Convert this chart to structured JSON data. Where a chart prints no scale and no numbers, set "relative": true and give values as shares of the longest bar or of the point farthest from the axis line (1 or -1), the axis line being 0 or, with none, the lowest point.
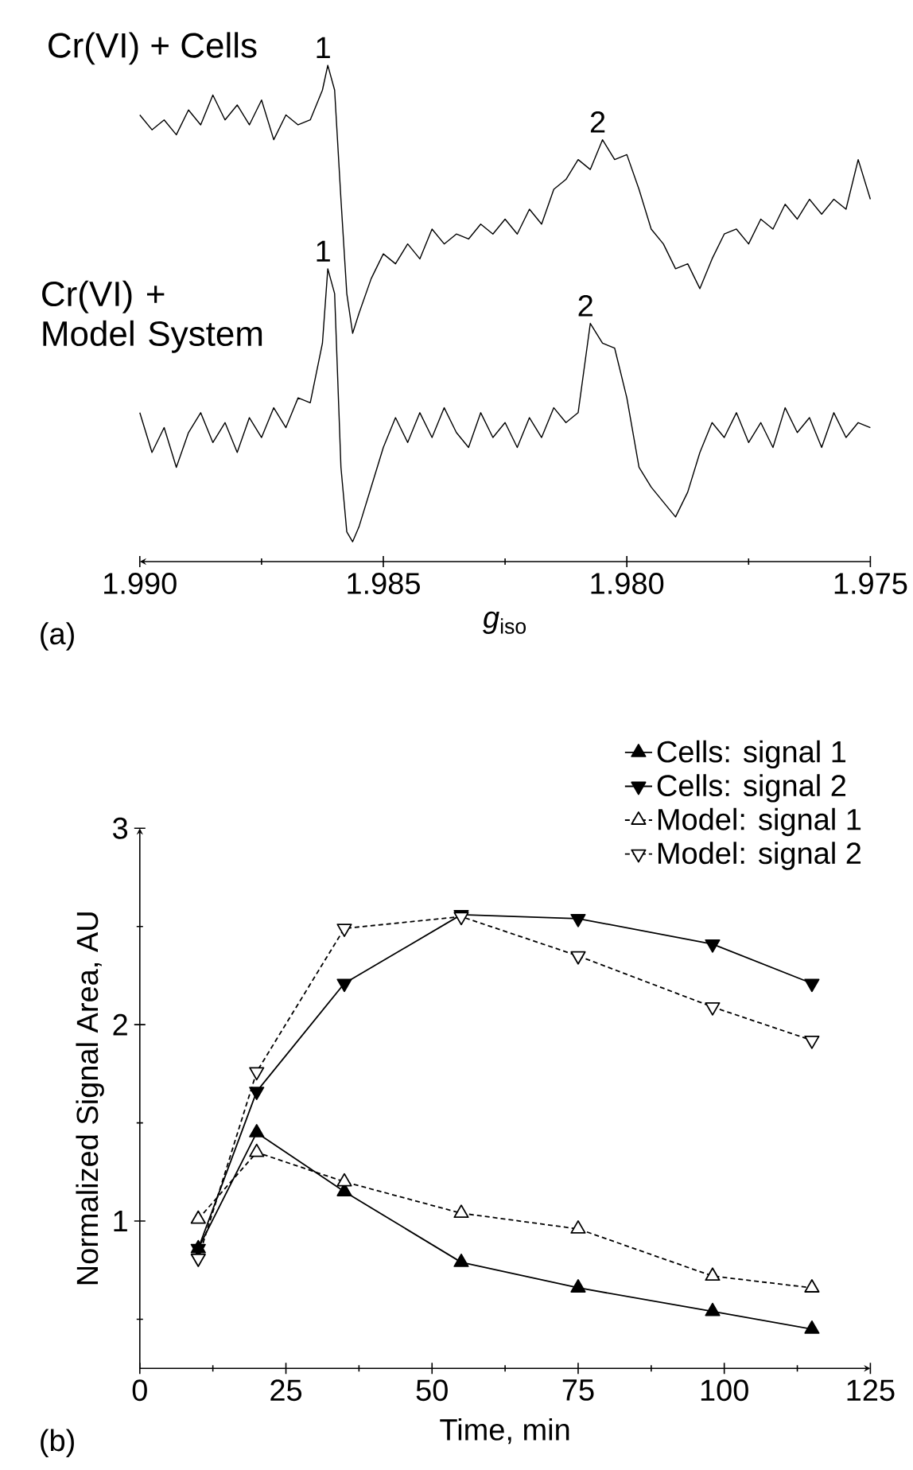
{
  "chart_data": [
    {
      "type": "line",
      "relative": true,
      "xlabel": "*g*$_{iso}$",
      "x": [
        1.99,
        1.98975,
        1.9895,
        1.98925,
        1.989,
        1.98875,
        1.9885,
        1.98825,
        1.988,
        1.98775,
        1.9875,
        1.98725,
        1.987,
        1.98675,
        1.9865,
        1.98625,
        1.98614,
        1.986,
        1.98587,
        1.98575,
        1.98563,
        1.9855,
        1.98525,
        1.985,
        1.98475,
        1.9845,
        1.98425,
        1.984,
        1.98375,
        1.9835,
        1.98325,
        1.983,
        1.98275,
        1.9825,
        1.98225,
        1.982,
        1.98175,
        1.9815,
        1.98125,
        1.981,
        1.98075,
        1.9805,
        1.98025,
        1.98,
        1.97975,
        1.9795,
        1.97925,
        1.979,
        1.97875,
        1.9785,
        1.97825,
        1.978,
        1.97775,
        1.9775,
        1.97725,
        1.977,
        1.97675,
        1.9765,
        1.97625,
        1.976,
        1.97575,
        1.9755,
        1.97525,
        1.975
      ],
      "series": [
        {
          "name": "Cr(VI) + Cells",
          "color": "#000000",
          "values": [
            0.9,
            0.87,
            0.89,
            0.86,
            0.91,
            0.88,
            0.94,
            0.89,
            0.92,
            0.88,
            0.93,
            0.85,
            0.9,
            0.88,
            0.89,
            0.95,
            1.0,
            0.95,
            0.73,
            0.54,
            0.46,
            0.5,
            0.57,
            0.62,
            0.6,
            0.64,
            0.61,
            0.67,
            0.64,
            0.66,
            0.65,
            0.68,
            0.66,
            0.69,
            0.66,
            0.71,
            0.68,
            0.75,
            0.77,
            0.81,
            0.79,
            0.85,
            0.81,
            0.82,
            0.75,
            0.67,
            0.64,
            0.59,
            0.6,
            0.55,
            0.61,
            0.66,
            0.67,
            0.64,
            0.69,
            0.67,
            0.72,
            0.69,
            0.73,
            0.7,
            0.73,
            0.71,
            0.81,
            0.73
          ]
        },
        {
          "name": "Cr(VI) + Model System",
          "color": "#000000",
          "values": [
            0.3,
            0.22,
            0.27,
            0.19,
            0.26,
            0.3,
            0.24,
            0.28,
            0.22,
            0.29,
            0.25,
            0.31,
            0.27,
            0.33,
            0.32,
            0.44,
            0.59,
            0.54,
            0.19,
            0.06,
            0.04,
            0.07,
            0.15,
            0.23,
            0.29,
            0.24,
            0.3,
            0.25,
            0.31,
            0.26,
            0.23,
            0.3,
            0.25,
            0.28,
            0.23,
            0.29,
            0.25,
            0.31,
            0.28,
            0.3,
            0.48,
            0.44,
            0.43,
            0.33,
            0.19,
            0.15,
            0.12,
            0.09,
            0.14,
            0.22,
            0.28,
            0.25,
            0.3,
            0.24,
            0.28,
            0.23,
            0.31,
            0.26,
            0.29,
            0.23,
            0.3,
            0.25,
            0.28,
            0.27
          ]
        }
      ],
      "xlim": [
        1.99,
        1.975
      ],
      "xticks": [
        {
          "value": 1.99,
          "label": "1.990"
        },
        {
          "value": 1.9875,
          "label": null
        },
        {
          "value": 1.985,
          "label": "1.985"
        },
        {
          "value": 1.9825,
          "label": null
        },
        {
          "value": 1.98,
          "label": "1.980"
        },
        {
          "value": 1.9775,
          "label": null
        },
        {
          "value": 1.975,
          "label": "1.975"
        }
      ],
      "tick_labels": "x",
      "annotations": [
        {
          "text": "1",
          "x": 1.98614,
          "y": 1.0
        },
        {
          "text": "2",
          "x": 1.9805,
          "y": 0.85
        },
        {
          "text": "1",
          "x": 1.98614,
          "y": 0.59
        },
        {
          "text": "2",
          "x": 1.98075,
          "y": 0.48
        },
        "(a)"
      ]
    },
    {
      "type": "line",
      "xlabel": "Time, min",
      "ylabel": "Normalized Signal Area, AU",
      "x": [
        10,
        20,
        35,
        55,
        75,
        98,
        115
      ],
      "series": [
        {
          "name": "Cells: signal 1",
          "color": "#000000",
          "marker": "triangle",
          "line_style": "solid",
          "values": [
            0.86,
            1.45,
            1.15,
            0.79,
            0.66,
            0.54,
            0.45
          ]
        },
        {
          "name": "Cells: signal 2",
          "color": "#000000",
          "marker": "triangle-down",
          "line_style": "solid",
          "values": [
            0.86,
            1.66,
            2.21,
            2.56,
            2.54,
            2.41,
            2.21
          ]
        },
        {
          "name": "Model: signal 1",
          "color": "#000000",
          "marker": "triangle-open",
          "line_style": "dashed",
          "values": [
            1.01,
            1.35,
            1.2,
            1.04,
            0.96,
            0.72,
            0.66
          ]
        },
        {
          "name": "Model: signal 2",
          "color": "#000000",
          "marker": "triangle-down-open",
          "line_style": "dashed",
          "values": [
            0.81,
            1.76,
            2.49,
            2.55,
            2.35,
            2.09,
            1.92
          ]
        }
      ],
      "xlim": [
        0,
        125
      ],
      "xticks": [
        0,
        {
          "value": 12.5,
          "label": null
        },
        25,
        {
          "value": 37.5,
          "label": null
        },
        50,
        {
          "value": 62.5,
          "label": null
        },
        75,
        {
          "value": 87.5,
          "label": null
        },
        100,
        {
          "value": 112.5,
          "label": null
        },
        125
      ],
      "ylim": [
        0.25,
        3
      ],
      "yticks": [
        {
          "value": 0.5,
          "label": null
        },
        1,
        {
          "value": 1.5,
          "label": null
        },
        2,
        {
          "value": 2.5,
          "label": null
        },
        3
      ],
      "legend": "top right",
      "annotations": [
        "(b)"
      ]
    }
  ]
}
